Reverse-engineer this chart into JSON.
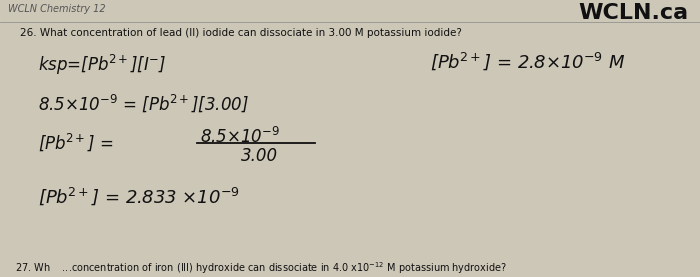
{
  "bg_color": "#cdc7b8",
  "header_left": "WCLN Chemistry 12",
  "header_right": "WCLN.ca",
  "question": "26. What concentration of lead (II) iodide can dissociate in 3.00 M potassium iodide?",
  "ksp_line": "ksp=[Pb$^{2+}$][I$^{-}$]",
  "answer_right": "[Pb$^{2+}$] = 2.8×10$^{-9}$ M",
  "line2": "8.5×10$^{-9}$ = [Pb$^{2+}$][3.00]",
  "line3_left": "[Pb$^{2+}$] =",
  "line3_num": "8.5×10$^{-9}$",
  "line3_den": "3.00",
  "line4": "[Pb$^{2+}$] = 2.833 ×10$^{-9}$",
  "footer": "...concentration of iron (III) hydroxide can dissociate in 4.0 x10$^{-12}$ M potassium hydroxide?"
}
